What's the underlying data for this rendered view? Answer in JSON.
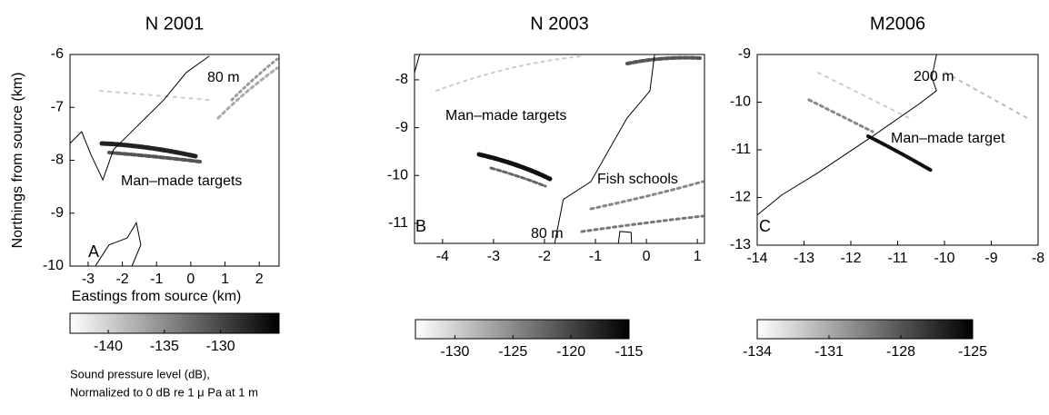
{
  "chart_data": [
    {
      "type": "heatmap",
      "title": "N 2001",
      "panel_label": "A",
      "xlabel": "Eastings from source (km)",
      "ylabel": "Northings from source (km)",
      "xlim": [
        -3.53,
        2.58
      ],
      "ylim": [
        -10,
        -6
      ],
      "xticks": [
        -3,
        -2,
        -1,
        0,
        1,
        2
      ],
      "yticks": [
        -6,
        -7,
        -8,
        -9,
        -10
      ],
      "contour_color": "#000000",
      "contour_label": "80 m",
      "contours": [
        {
          "x": [
            -3.53,
            -3.19,
            -2.92,
            -2.57,
            -2.26,
            -1.59,
            -0.79,
            -0.13,
            0.54
          ],
          "y": [
            -7.68,
            -7.46,
            -7.89,
            -8.37,
            -7.8,
            -7.37,
            -6.86,
            -6.34,
            -6.03
          ]
        },
        {
          "x": [
            -2.79,
            -2.39,
            -1.86,
            -1.59,
            -1.46,
            -1.72
          ],
          "y": [
            -10,
            -9.6,
            -9.47,
            -9.18,
            -9.6,
            -10
          ]
        }
      ],
      "annotations": [
        "Man–made targets"
      ],
      "colormap": [
        "#ffffff",
        "#000000"
      ],
      "colorbar": {
        "lim": [
          -143.4,
          -124.8
        ],
        "ticks": [
          -140,
          -135,
          -130
        ],
        "label": [
          "Sound pressure level (dB),",
          "Normalized to 0 dB re 1 μ Pa at 1 m"
        ]
      }
    },
    {
      "type": "heatmap",
      "title": "N 2003",
      "panel_label": "B",
      "xlim": [
        -4.55,
        1.14
      ],
      "ylim": [
        -11.42,
        -7.47
      ],
      "xticks": [
        -4,
        -3,
        -2,
        -1,
        0,
        1
      ],
      "yticks": [
        -8,
        -9,
        -10,
        -11
      ],
      "contour_color": "#000000",
      "contour_label": "80 m",
      "contours": [
        {
          "x": [
            -1.8,
            -1.63,
            -1.09,
            -0.38,
            0.07,
            0.16
          ],
          "y": [
            -11.42,
            -10.5,
            -10.13,
            -8.8,
            -8.23,
            -7.47
          ]
        },
        {
          "x": [
            -0.55,
            -0.52,
            -0.3,
            -0.29
          ],
          "y": [
            -11.42,
            -11.17,
            -11.19,
            -11.42
          ]
        },
        {
          "x": [
            -4.55,
            -4.45
          ],
          "y": [
            -7.85,
            -7.47
          ]
        }
      ],
      "annotations": [
        "Man–made targets",
        "Fish schools"
      ],
      "colormap": [
        "#ffffff",
        "#000000"
      ],
      "colorbar": {
        "lim": [
          -133.4,
          -115
        ],
        "ticks": [
          -130,
          -125,
          -120,
          -115
        ]
      }
    },
    {
      "type": "heatmap",
      "title": "M2006",
      "panel_label": "C",
      "xlim": [
        -14,
        -8
      ],
      "ylim": [
        -13,
        -9
      ],
      "xticks": [
        -14,
        -13,
        -12,
        -11,
        -10,
        -9,
        -8
      ],
      "yticks": [
        -9,
        -10,
        -11,
        -12,
        -13
      ],
      "contour_color": "#000000",
      "contour_label": "200 m",
      "contours": [
        {
          "x": [
            -14,
            -13.48,
            -12.7,
            -11.53,
            -10.56,
            -10.17,
            -10.27,
            -10.17
          ],
          "y": [
            -12.37,
            -11.95,
            -11.48,
            -10.71,
            -10.05,
            -9.76,
            -9.48,
            -9
          ]
        }
      ],
      "annotations": [
        "Man–made target"
      ],
      "colormap": [
        "#ffffff",
        "#000000"
      ],
      "colorbar": {
        "lim": [
          -134,
          -125
        ],
        "ticks": [
          -134,
          -131,
          -128,
          -125
        ]
      }
    }
  ]
}
